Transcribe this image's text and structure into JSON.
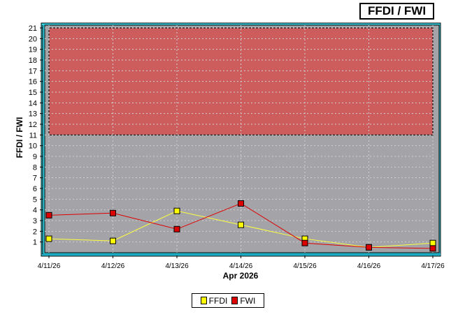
{
  "chart_data": {
    "type": "line",
    "title": "FFDI / FWI",
    "xlabel": "Apr 2026",
    "ylabel": "FFDI / FWI",
    "categories": [
      "4/11/26",
      "4/12/26",
      "4/13/26",
      "4/14/26",
      "4/15/26",
      "4/16/26",
      "4/17/26"
    ],
    "ylim": [
      0,
      21
    ],
    "yticks": [
      1,
      2,
      3,
      4,
      5,
      6,
      7,
      8,
      9,
      10,
      11,
      12,
      13,
      14,
      15,
      16,
      17,
      18,
      19,
      20,
      21
    ],
    "grid": true,
    "legend_position": "bottom-center",
    "highlight_band": {
      "from": 11,
      "to": 21,
      "color": "#cd5c5c"
    },
    "series": [
      {
        "name": "FFDI",
        "color": "#ffff00",
        "line_color": "#ffff40",
        "values": [
          1.3,
          1.1,
          3.9,
          2.6,
          1.3,
          0.5,
          0.9
        ]
      },
      {
        "name": "FWI",
        "color": "#dd0000",
        "line_color": "#dd0000",
        "values": [
          3.5,
          3.7,
          2.2,
          4.6,
          0.9,
          0.5,
          0.4
        ]
      }
    ]
  },
  "colors": {
    "plot_bg": "#a4a4a8",
    "frame": "#36d6e6",
    "grid": "#d0d0d0"
  }
}
